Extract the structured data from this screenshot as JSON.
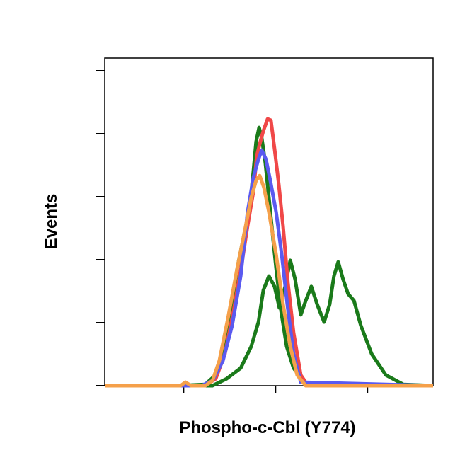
{
  "chart_data": {
    "type": "line",
    "xlabel": "Phospho-c-Cbl (Y774)",
    "ylabel": "Events",
    "xlim": [
      0,
      100
    ],
    "ylim": [
      0,
      100
    ],
    "xticks": [
      24,
      52,
      80
    ],
    "yticks": [
      0,
      20,
      40,
      60,
      80,
      100
    ],
    "series": [
      {
        "color": "#1a7a1a",
        "x": [
          0,
          22.0,
          30.6,
          33.8,
          36.0,
          38.1,
          40.3,
          42.5,
          44.0,
          45.3,
          46.1,
          47.0,
          47.8,
          48.9,
          50.0,
          51.1,
          52.2,
          53.7,
          55.4,
          57.5,
          60.8,
          65.1,
          100
        ],
        "values": [
          0,
          0,
          0.4,
          3.4,
          10.1,
          21.3,
          37.1,
          48.3,
          55.1,
          68.5,
          77.5,
          82.0,
          78.7,
          70.8,
          59.6,
          48.3,
          37.1,
          23.6,
          12.4,
          5.6,
          1.1,
          0,
          0
        ]
      },
      {
        "color": "#1a7a1a",
        "x": [
          0,
          32.8,
          37.1,
          41.4,
          44.6,
          46.8,
          48.3,
          50.0,
          51.7,
          53.2,
          54.7,
          56.5,
          58.0,
          59.7,
          61.2,
          62.9,
          64.7,
          66.8,
          68.5,
          69.8,
          71.1,
          72.6,
          74.1,
          75.9,
          78.0,
          81.3,
          85.6,
          90.9,
          100
        ],
        "values": [
          0,
          0,
          2.2,
          5.6,
          12.4,
          20.2,
          30.3,
          34.8,
          31.5,
          24.7,
          30.3,
          39.8,
          33.7,
          22.5,
          27.0,
          31.5,
          25.8,
          20.2,
          25.8,
          34.8,
          39.3,
          33.7,
          29.2,
          27.0,
          19.1,
          10.1,
          3.4,
          0.4,
          0
        ]
      },
      {
        "color": "#f04848",
        "x": [
          0,
          30.6,
          33.8,
          36.6,
          39.2,
          41.8,
          43.5,
          45.3,
          46.3,
          47.4,
          48.3,
          49.6,
          50.6,
          51.7,
          53.0,
          54.3,
          55.8,
          57.5,
          59.7,
          61.9,
          100
        ],
        "values": [
          0,
          0,
          2.2,
          10.1,
          23.6,
          39.3,
          50.6,
          61.8,
          73.0,
          77.5,
          80.9,
          84.7,
          84.3,
          75.3,
          64.0,
          50.6,
          32.6,
          16.9,
          3.4,
          0,
          0
        ]
      },
      {
        "color": "#5a5af0",
        "x": [
          0,
          29.5,
          32.8,
          36.0,
          38.8,
          41.4,
          43.5,
          45.3,
          46.8,
          47.8,
          49.1,
          50.4,
          52.2,
          53.9,
          55.6,
          57.5,
          59.7,
          100
        ],
        "values": [
          0,
          0,
          1.6,
          7.9,
          19.1,
          34.8,
          55.1,
          66.3,
          71.9,
          74.8,
          71.9,
          65.2,
          55.1,
          41.6,
          25.8,
          10.1,
          1.1,
          0
        ]
      },
      {
        "color": "#f5a04a",
        "x": [
          0,
          23.1,
          24.6,
          26.3,
          30.6,
          32.8,
          34.9,
          37.5,
          40.3,
          42.9,
          44.6,
          46.1,
          47.2,
          48.5,
          50.0,
          52.2,
          54.3,
          56.5,
          58.6,
          61.2,
          100
        ],
        "values": [
          0,
          0,
          1.1,
          0,
          0,
          1.6,
          7.9,
          21.3,
          37.1,
          50.6,
          59.6,
          65.2,
          66.7,
          62.9,
          55.1,
          41.6,
          25.8,
          12.4,
          3.4,
          0,
          0
        ]
      }
    ]
  }
}
